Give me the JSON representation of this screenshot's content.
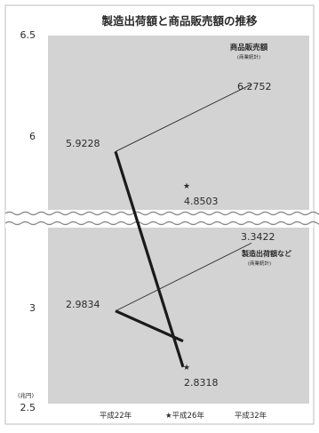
{
  "chart_data": {
    "type": "line",
    "title": "製造出荷額と商品販売額の推移",
    "unit_label": "(兆円)",
    "categories": [
      "平成22年",
      "★平成26年",
      "平成32年"
    ],
    "y_ticks": [
      "6.5",
      "6",
      "3",
      "2.5"
    ],
    "axis_break": true,
    "grid": false,
    "colors": {
      "plot_bg": "#d3d3d3",
      "line_dark": "#1a1a1a",
      "line_thin": "#2a2a2a"
    },
    "series": [
      {
        "name": "商品販売額",
        "source": "(商業統計)",
        "values": [
          5.9228,
          4.8503,
          6.2752
        ],
        "value_labels": [
          "5.9228",
          "4.8503",
          "6.2752"
        ]
      },
      {
        "name": "製造出荷額など",
        "source": "(商業統計)",
        "values": [
          2.9834,
          2.8318,
          3.3422
        ],
        "value_labels": [
          "2.9834",
          "2.8318",
          "3.3422"
        ]
      }
    ]
  }
}
